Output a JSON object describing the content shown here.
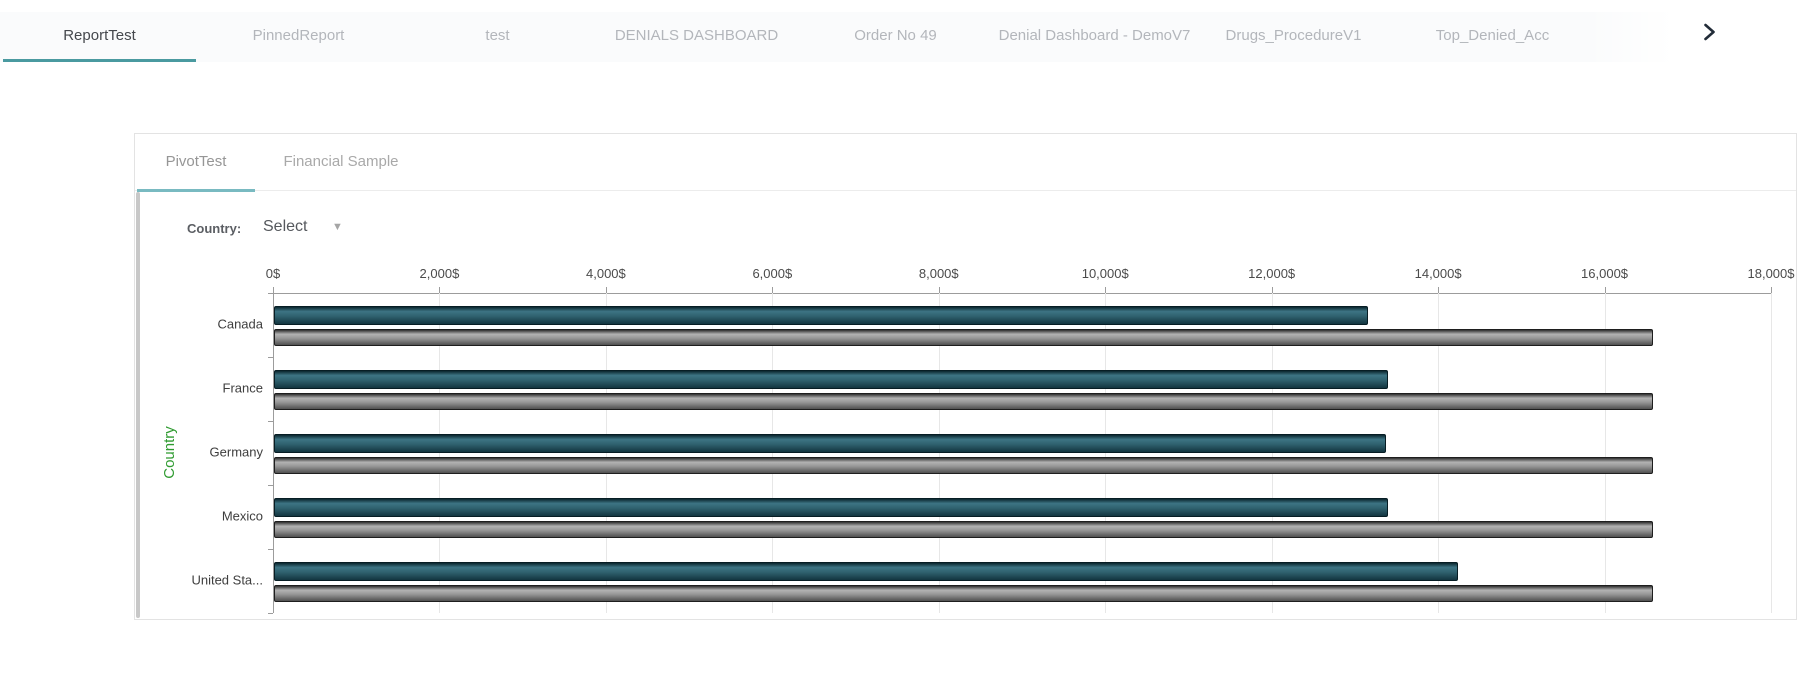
{
  "tabbar": {
    "tabs": [
      {
        "label": "ReportTest",
        "active": true
      },
      {
        "label": "PinnedReport",
        "active": false
      },
      {
        "label": "test",
        "active": false
      },
      {
        "label": "DENIALS DASHBOARD",
        "active": false
      },
      {
        "label": "Order No 49",
        "active": false
      },
      {
        "label": "Denial Dashboard - DemoV7",
        "active": false
      },
      {
        "label": "Drugs_ProcedureV1",
        "active": false
      },
      {
        "label": "Top_Denied_Acc",
        "active": false
      }
    ],
    "accent_color": "#4a9aa0",
    "active_text_color": "#45484d",
    "inactive_text_color": "#b3b6bb",
    "chevron_color": "#222c38",
    "kebab_color": "#44546a"
  },
  "card": {
    "tabs": [
      {
        "label": "PivotTest",
        "active": true
      },
      {
        "label": "Financial Sample",
        "active": false
      }
    ],
    "accent_color": "#79bac1",
    "filter": {
      "label": "Country:",
      "value": "Select",
      "caret": "▼"
    }
  },
  "chart_data": {
    "type": "bar",
    "orientation": "horizontal",
    "axis_position": "top",
    "title": "",
    "xlabel": "",
    "ylabel": "Country",
    "ylabel_color": "#2f9b30",
    "xlim": [
      0,
      18000
    ],
    "tick_step": 2000,
    "tick_labels": [
      "0$",
      "2,000$",
      "4,000$",
      "6,000$",
      "8,000$",
      "10,000$",
      "12,000$",
      "14,000$",
      "16,000$",
      "18,000$"
    ],
    "grid": true,
    "legend": "none",
    "categories": [
      "Canada",
      "France",
      "Germany",
      "Mexico",
      "United Sta..."
    ],
    "series": [
      {
        "name": "",
        "color": "#2e606e",
        "values": [
          13150,
          13380,
          13360,
          13390,
          14230
        ]
      },
      {
        "name": "",
        "color": "#949494",
        "values": [
          16570,
          16570,
          16570,
          16570,
          16570
        ]
      }
    ]
  }
}
